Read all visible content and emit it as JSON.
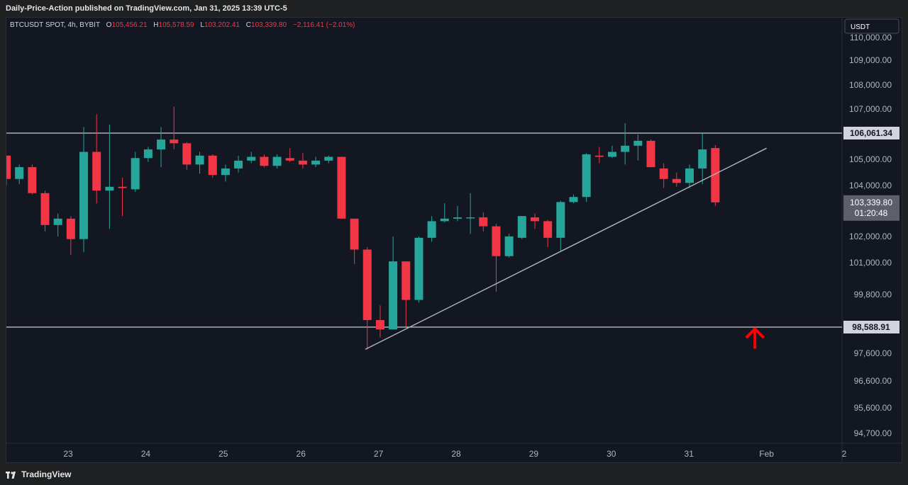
{
  "header": {
    "published": "Daily-Price-Action published on TradingView.com, Jan 31, 2025 13:39 UTC-5"
  },
  "legend": {
    "symbol": "BTCUSDT SPOT, 4h, BYBIT",
    "o_label": "O",
    "o_value": "105,456.21",
    "h_label": "H",
    "h_value": "105,578.59",
    "l_label": "L",
    "l_value": "103,202.41",
    "c_label": "C",
    "c_value": "103,339.80",
    "change": "−2,116.41 (−2.01%)"
  },
  "currency_button": "USDT",
  "footer": {
    "brand": "TradingView"
  },
  "colors": {
    "up": "#26a69a",
    "down": "#f23645",
    "bg": "#131722",
    "level_line": "#c9ccd4",
    "trendline": "#b2b5be",
    "arrow": "#ff0000"
  },
  "chart_data": {
    "type": "candlestick",
    "title": "",
    "interval": "4h",
    "y_ticks": [
      110000,
      109000,
      108000,
      107000,
      105000,
      104000,
      102000,
      101000,
      99800,
      97600,
      96600,
      95600,
      94700
    ],
    "y_tick_labels": [
      "110,000.00",
      "109,000.00",
      "108,000.00",
      "107,000.00",
      "105,000.00",
      "104,000.00",
      "102,000.00",
      "101,000.00",
      "99,800.00",
      "97,600.00",
      "96,600.00",
      "95,600.00",
      "94,700.00"
    ],
    "x_labels": [
      {
        "label": "23",
        "day": 23
      },
      {
        "label": "24",
        "day": 24
      },
      {
        "label": "25",
        "day": 25
      },
      {
        "label": "26",
        "day": 26
      },
      {
        "label": "27",
        "day": 27
      },
      {
        "label": "28",
        "day": 28
      },
      {
        "label": "29",
        "day": 29
      },
      {
        "label": "30",
        "day": 30
      },
      {
        "label": "31",
        "day": 31
      },
      {
        "label": "Feb",
        "day": 32
      },
      {
        "label": "2",
        "day": 33
      }
    ],
    "x_range_days": [
      22.2,
      33.0
    ],
    "horizontal_levels": [
      {
        "value": 106061.34,
        "label": "106,061.34"
      },
      {
        "value": 98588.91,
        "label": "98,588.91"
      }
    ],
    "last_price": {
      "value": 103339.8,
      "label": "103,339.80",
      "countdown": "01:20:48"
    },
    "trendline": {
      "from": {
        "day": 26.83,
        "price": 97750
      },
      "to": {
        "day": 32.0,
        "price": 105450
      }
    },
    "arrow": {
      "day": 31.85,
      "price": 98200,
      "direction": "up"
    },
    "candles": [
      {
        "o": 105150,
        "h": 105150,
        "l": 104000,
        "c": 104250
      },
      {
        "o": 104250,
        "h": 104800,
        "l": 104050,
        "c": 104700
      },
      {
        "o": 104700,
        "h": 104800,
        "l": 103650,
        "c": 103700
      },
      {
        "o": 103700,
        "h": 103800,
        "l": 102200,
        "c": 102450
      },
      {
        "o": 102450,
        "h": 102900,
        "l": 102000,
        "c": 102700
      },
      {
        "o": 102700,
        "h": 102800,
        "l": 101300,
        "c": 101900
      },
      {
        "o": 101900,
        "h": 106300,
        "l": 101400,
        "c": 105300
      },
      {
        "o": 105300,
        "h": 106800,
        "l": 103300,
        "c": 103800
      },
      {
        "o": 103800,
        "h": 106400,
        "l": 102300,
        "c": 103950
      },
      {
        "o": 103950,
        "h": 104300,
        "l": 102800,
        "c": 103900
      },
      {
        "o": 103850,
        "h": 105300,
        "l": 103750,
        "c": 105050
      },
      {
        "o": 105050,
        "h": 105500,
        "l": 104900,
        "c": 105400
      },
      {
        "o": 105400,
        "h": 106300,
        "l": 104700,
        "c": 105800
      },
      {
        "o": 105800,
        "h": 107100,
        "l": 105400,
        "c": 105650
      },
      {
        "o": 105650,
        "h": 105700,
        "l": 104600,
        "c": 104800
      },
      {
        "o": 104800,
        "h": 105300,
        "l": 104450,
        "c": 105150
      },
      {
        "o": 105150,
        "h": 105200,
        "l": 104300,
        "c": 104400
      },
      {
        "o": 104400,
        "h": 104800,
        "l": 104150,
        "c": 104650
      },
      {
        "o": 104650,
        "h": 105150,
        "l": 104500,
        "c": 104950
      },
      {
        "o": 104950,
        "h": 105300,
        "l": 104850,
        "c": 105100
      },
      {
        "o": 105100,
        "h": 105200,
        "l": 104700,
        "c": 104750
      },
      {
        "o": 104750,
        "h": 105200,
        "l": 104650,
        "c": 105100
      },
      {
        "o": 105050,
        "h": 105450,
        "l": 104900,
        "c": 104950
      },
      {
        "o": 104950,
        "h": 105250,
        "l": 104650,
        "c": 104800
      },
      {
        "o": 104800,
        "h": 105100,
        "l": 104700,
        "c": 104950
      },
      {
        "o": 104950,
        "h": 105150,
        "l": 104850,
        "c": 105100
      },
      {
        "o": 105100,
        "h": 105100,
        "l": 102700,
        "c": 102700
      },
      {
        "o": 102700,
        "h": 102700,
        "l": 100950,
        "c": 101500
      },
      {
        "o": 101500,
        "h": 101600,
        "l": 97750,
        "c": 98850
      },
      {
        "o": 98850,
        "h": 99400,
        "l": 98200,
        "c": 98500
      },
      {
        "o": 98500,
        "h": 102000,
        "l": 98500,
        "c": 101050
      },
      {
        "o": 101050,
        "h": 101050,
        "l": 98600,
        "c": 99600
      },
      {
        "o": 99600,
        "h": 102000,
        "l": 99500,
        "c": 101950
      },
      {
        "o": 101950,
        "h": 102800,
        "l": 101800,
        "c": 102600
      },
      {
        "o": 102600,
        "h": 103300,
        "l": 102550,
        "c": 102700
      },
      {
        "o": 102700,
        "h": 103200,
        "l": 102600,
        "c": 102750
      },
      {
        "o": 102750,
        "h": 103700,
        "l": 102100,
        "c": 102750
      },
      {
        "o": 102750,
        "h": 102950,
        "l": 102200,
        "c": 102400
      },
      {
        "o": 102400,
        "h": 102500,
        "l": 99900,
        "c": 101250
      },
      {
        "o": 101250,
        "h": 102100,
        "l": 101200,
        "c": 102000
      },
      {
        "o": 101950,
        "h": 102800,
        "l": 101900,
        "c": 102800
      },
      {
        "o": 102750,
        "h": 102900,
        "l": 102300,
        "c": 102600
      },
      {
        "o": 102600,
        "h": 102650,
        "l": 101600,
        "c": 101950
      },
      {
        "o": 101950,
        "h": 103400,
        "l": 101450,
        "c": 103350
      },
      {
        "o": 103350,
        "h": 103650,
        "l": 103300,
        "c": 103550
      },
      {
        "o": 103550,
        "h": 105250,
        "l": 103350,
        "c": 105200
      },
      {
        "o": 105150,
        "h": 105500,
        "l": 104850,
        "c": 105100
      },
      {
        "o": 105100,
        "h": 105550,
        "l": 105050,
        "c": 105300
      },
      {
        "o": 105300,
        "h": 106450,
        "l": 104800,
        "c": 105550
      },
      {
        "o": 105550,
        "h": 106000,
        "l": 104950,
        "c": 105750
      },
      {
        "o": 105750,
        "h": 105800,
        "l": 104700,
        "c": 104700
      },
      {
        "o": 104650,
        "h": 104850,
        "l": 103900,
        "c": 104250
      },
      {
        "o": 104250,
        "h": 104500,
        "l": 103950,
        "c": 104100
      },
      {
        "o": 104100,
        "h": 104800,
        "l": 103900,
        "c": 104650
      },
      {
        "o": 104650,
        "h": 106050,
        "l": 104050,
        "c": 105400
      },
      {
        "o": 105456.21,
        "h": 105578.59,
        "l": 103202.41,
        "c": 103339.8
      }
    ]
  }
}
